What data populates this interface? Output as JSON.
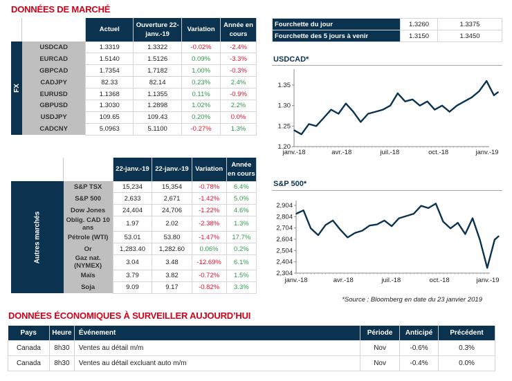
{
  "market_title": "DONNÉES DE MARCHÉ",
  "fx": {
    "side_label": "FX",
    "headers": [
      "Actuel",
      "Ouverture 22-janv.-19",
      "Variation",
      "Année en cours"
    ],
    "rows": [
      {
        "name": "USDCAD",
        "actuel": "1.3319",
        "ouverture": "1.3322",
        "variation": "-0.02%",
        "annee": "-2.4%"
      },
      {
        "name": "EURCAD",
        "actuel": "1.5140",
        "ouverture": "1.5126",
        "variation": "0.09%",
        "annee": "-3.3%"
      },
      {
        "name": "GBPCAD",
        "actuel": "1.7354",
        "ouverture": "1.7182",
        "variation": "1.00%",
        "annee": "-0.3%"
      },
      {
        "name": "CADJPY",
        "actuel": "82.33",
        "ouverture": "82.14",
        "variation": "0.23%",
        "annee": "2.4%"
      },
      {
        "name": "EURUSD",
        "actuel": "1.1368",
        "ouverture": "1.1355",
        "variation": "0.11%",
        "annee": "-0.9%"
      },
      {
        "name": "GBPUSD",
        "actuel": "1.3030",
        "ouverture": "1.2898",
        "variation": "1.02%",
        "annee": "2.2%"
      },
      {
        "name": "USDJPY",
        "actuel": "109.65",
        "ouverture": "109.43",
        "variation": "0.20%",
        "annee": "0.0%"
      },
      {
        "name": "CADCNY",
        "actuel": "5.0963",
        "ouverture": "5.1100",
        "variation": "-0.27%",
        "annee": "1.3%"
      }
    ]
  },
  "other": {
    "side_label": "Autres marchés",
    "headers": [
      "22-janv.-19",
      "22-janv.-19",
      "Variation",
      "Année en cours"
    ],
    "rows": [
      {
        "name": "S&P TSX",
        "actuel": "15,234",
        "ouverture": "15,354",
        "variation": "-0.78%",
        "annee": "6.4%"
      },
      {
        "name": "S&P 500",
        "actuel": "2,633",
        "ouverture": "2,671",
        "variation": "-1.42%",
        "annee": "5.0%"
      },
      {
        "name": "Dow Jones",
        "actuel": "24,404",
        "ouverture": "24,706",
        "variation": "-1.22%",
        "annee": "4.6%"
      },
      {
        "name": "Oblig. CAD 10 ans",
        "actuel": "1.97",
        "ouverture": "2.02",
        "variation": "-2.38%",
        "annee": "1.3%"
      },
      {
        "name": "Pétrole (WTI)",
        "actuel": "53.01",
        "ouverture": "53.80",
        "variation": "-1.47%",
        "annee": "17.7%"
      },
      {
        "name": "Or",
        "actuel": "1,283.40",
        "ouverture": "1,282.60",
        "variation": "0.06%",
        "annee": "0.2%"
      },
      {
        "name": "Gaz nat. (NYMEX)",
        "actuel": "3.04",
        "ouverture": "3.48",
        "variation": "-12.69%",
        "annee": "6.1%"
      },
      {
        "name": "Maïs",
        "actuel": "3.79",
        "ouverture": "3.82",
        "variation": "-0.72%",
        "annee": "1.5%"
      },
      {
        "name": "Soja",
        "actuel": "9.09",
        "ouverture": "9.17",
        "variation": "-0.82%",
        "annee": "3.3%"
      }
    ]
  },
  "ranges": [
    {
      "label": "Fourchette du jour",
      "low": "1.3260",
      "high": "1.3375"
    },
    {
      "label": "Fourchette des 5 jours à venir",
      "low": "1.3150",
      "high": "1.3450"
    }
  ],
  "colors": {
    "navy": "#0b3350",
    "negative": "#e8112d",
    "positive": "#2e9a4a",
    "title_red": "#d0021b",
    "label_gray": "#bfbfbf"
  },
  "chart_data": [
    {
      "type": "line",
      "title": "USDCAD*",
      "x_ticks": [
        {
          "date": "2018-01-01",
          "label": "janv.-18"
        },
        {
          "date": "2018-04-01",
          "label": "avr.-18"
        },
        {
          "date": "2018-07-01",
          "label": "juil.-18"
        },
        {
          "date": "2018-10-01",
          "label": "oct.-18"
        },
        {
          "date": "2019-01-01",
          "label": "janv.-19"
        }
      ],
      "y_ticks": [
        {
          "value": 1.2,
          "label": "1.20"
        },
        {
          "value": 1.25,
          "label": "1.25"
        },
        {
          "value": 1.3,
          "label": "1.30"
        },
        {
          "value": 1.35,
          "label": "1.35"
        }
      ],
      "ylim": [
        1.2,
        1.38
      ],
      "grid": false,
      "line_color": "#0b3350",
      "x": [
        "2018-01-01",
        "2018-01-15",
        "2018-01-29",
        "2018-02-12",
        "2018-02-26",
        "2018-03-12",
        "2018-03-26",
        "2018-04-09",
        "2018-04-23",
        "2018-05-07",
        "2018-05-21",
        "2018-06-04",
        "2018-06-18",
        "2018-07-02",
        "2018-07-16",
        "2018-07-30",
        "2018-08-13",
        "2018-08-27",
        "2018-09-10",
        "2018-09-24",
        "2018-10-08",
        "2018-10-22",
        "2018-11-05",
        "2018-11-19",
        "2018-12-03",
        "2018-12-17",
        "2018-12-31",
        "2019-01-14",
        "2019-01-22"
      ],
      "values": [
        1.24,
        1.23,
        1.255,
        1.25,
        1.27,
        1.29,
        1.28,
        1.305,
        1.285,
        1.26,
        1.28,
        1.285,
        1.29,
        1.3,
        1.33,
        1.31,
        1.315,
        1.3,
        1.31,
        1.29,
        1.3,
        1.285,
        1.3,
        1.31,
        1.32,
        1.335,
        1.36,
        1.325,
        1.333
      ]
    },
    {
      "type": "line",
      "title": "S&P 500*",
      "x_ticks": [
        {
          "date": "2018-01-01",
          "label": "janv.-18"
        },
        {
          "date": "2018-04-01",
          "label": "avr.-18"
        },
        {
          "date": "2018-07-01",
          "label": "juil.-18"
        },
        {
          "date": "2018-10-01",
          "label": "oct.-18"
        },
        {
          "date": "2019-01-01",
          "label": "janv.-19"
        }
      ],
      "y_ticks": [
        {
          "value": 2304,
          "label": "2,304"
        },
        {
          "value": 2404,
          "label": "2,404"
        },
        {
          "value": 2504,
          "label": "2,504"
        },
        {
          "value": 2604,
          "label": "2,604"
        },
        {
          "value": 2704,
          "label": "2,704"
        },
        {
          "value": 2804,
          "label": "2,804"
        },
        {
          "value": 2904,
          "label": "2,904"
        }
      ],
      "ylim": [
        2304,
        2950
      ],
      "grid": false,
      "line_color": "#0b3350",
      "x": [
        "2018-01-01",
        "2018-01-15",
        "2018-01-29",
        "2018-02-12",
        "2018-02-26",
        "2018-03-12",
        "2018-03-26",
        "2018-04-09",
        "2018-04-23",
        "2018-05-07",
        "2018-05-21",
        "2018-06-04",
        "2018-06-18",
        "2018-07-02",
        "2018-07-16",
        "2018-07-30",
        "2018-08-13",
        "2018-08-27",
        "2018-09-10",
        "2018-09-24",
        "2018-10-08",
        "2018-10-22",
        "2018-11-05",
        "2018-11-19",
        "2018-12-03",
        "2018-12-17",
        "2018-12-31",
        "2019-01-14",
        "2019-01-22"
      ],
      "values": [
        2830,
        2860,
        2700,
        2640,
        2730,
        2770,
        2690,
        2620,
        2660,
        2680,
        2725,
        2735,
        2770,
        2720,
        2790,
        2810,
        2830,
        2900,
        2880,
        2920,
        2760,
        2700,
        2750,
        2650,
        2790,
        2600,
        2350,
        2600,
        2632
      ]
    }
  ],
  "source_note": "*Source : Bloomberg en date du  23 janvier 2019",
  "eco_title": "DONNÉES ÉCONOMIQUES À SURVEILLER AUJOURD’HUI",
  "eco": {
    "headers": [
      "Pays",
      "Heure",
      "Événement",
      "Période",
      "Anticipé",
      "Précédent"
    ],
    "rows": [
      [
        "Canada",
        "8h30",
        "Ventes au détail m/m",
        "Nov",
        "-0.6%",
        "0.3%"
      ],
      [
        "Canada",
        "8h30",
        "Ventes au détail excluant auto m/m",
        "Nov",
        "-0.4%",
        "0.0%"
      ]
    ]
  }
}
